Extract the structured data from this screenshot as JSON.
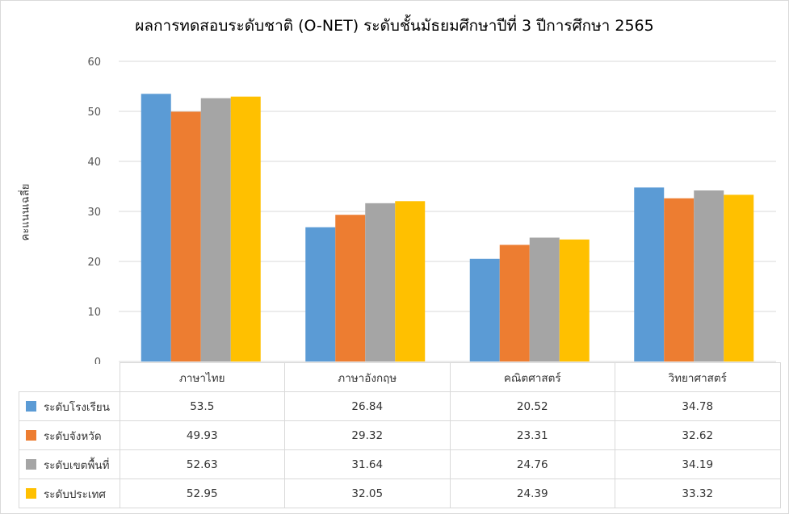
{
  "chart_data": {
    "type": "bar",
    "title": "ผลการทดสอบระดับชาติ (O-NET)  ระดับชั้นมัธยมศึกษาปีที่ 3 ปีการศึกษา 2565",
    "ylabel": "คะแนนเฉลี่ย",
    "xlabel": "",
    "ylim": [
      0,
      60
    ],
    "yticks": [
      0,
      10,
      20,
      30,
      40,
      50,
      60
    ],
    "grid": true,
    "legend": "data-table-below",
    "categories": [
      "ภาษาไทย",
      "ภาษาอังกฤษ",
      "คณิตศาสตร์",
      "วิทยาศาสตร์"
    ],
    "series": [
      {
        "name": "ระดับโรงเรียน",
        "color": "#5b9bd5",
        "values": [
          53.5,
          26.84,
          20.52,
          34.78
        ],
        "labels": [
          "53.5",
          "26.84",
          "20.52",
          "34.78"
        ]
      },
      {
        "name": "ระดับจังหวัด",
        "color": "#ed7d31",
        "values": [
          49.93,
          29.32,
          23.31,
          32.62
        ],
        "labels": [
          "49.93",
          "29.32",
          "23.31",
          "32.62"
        ]
      },
      {
        "name": "ระดับเขตพื้นที่",
        "color": "#a5a5a5",
        "values": [
          52.63,
          31.64,
          24.76,
          34.19
        ],
        "labels": [
          "52.63",
          "31.64",
          "24.76",
          "34.19"
        ]
      },
      {
        "name": "ระดับประเทศ",
        "color": "#ffc000",
        "values": [
          52.95,
          32.05,
          24.39,
          33.32
        ],
        "labels": [
          "52.95",
          "32.05",
          "24.39",
          "33.32"
        ]
      }
    ]
  }
}
